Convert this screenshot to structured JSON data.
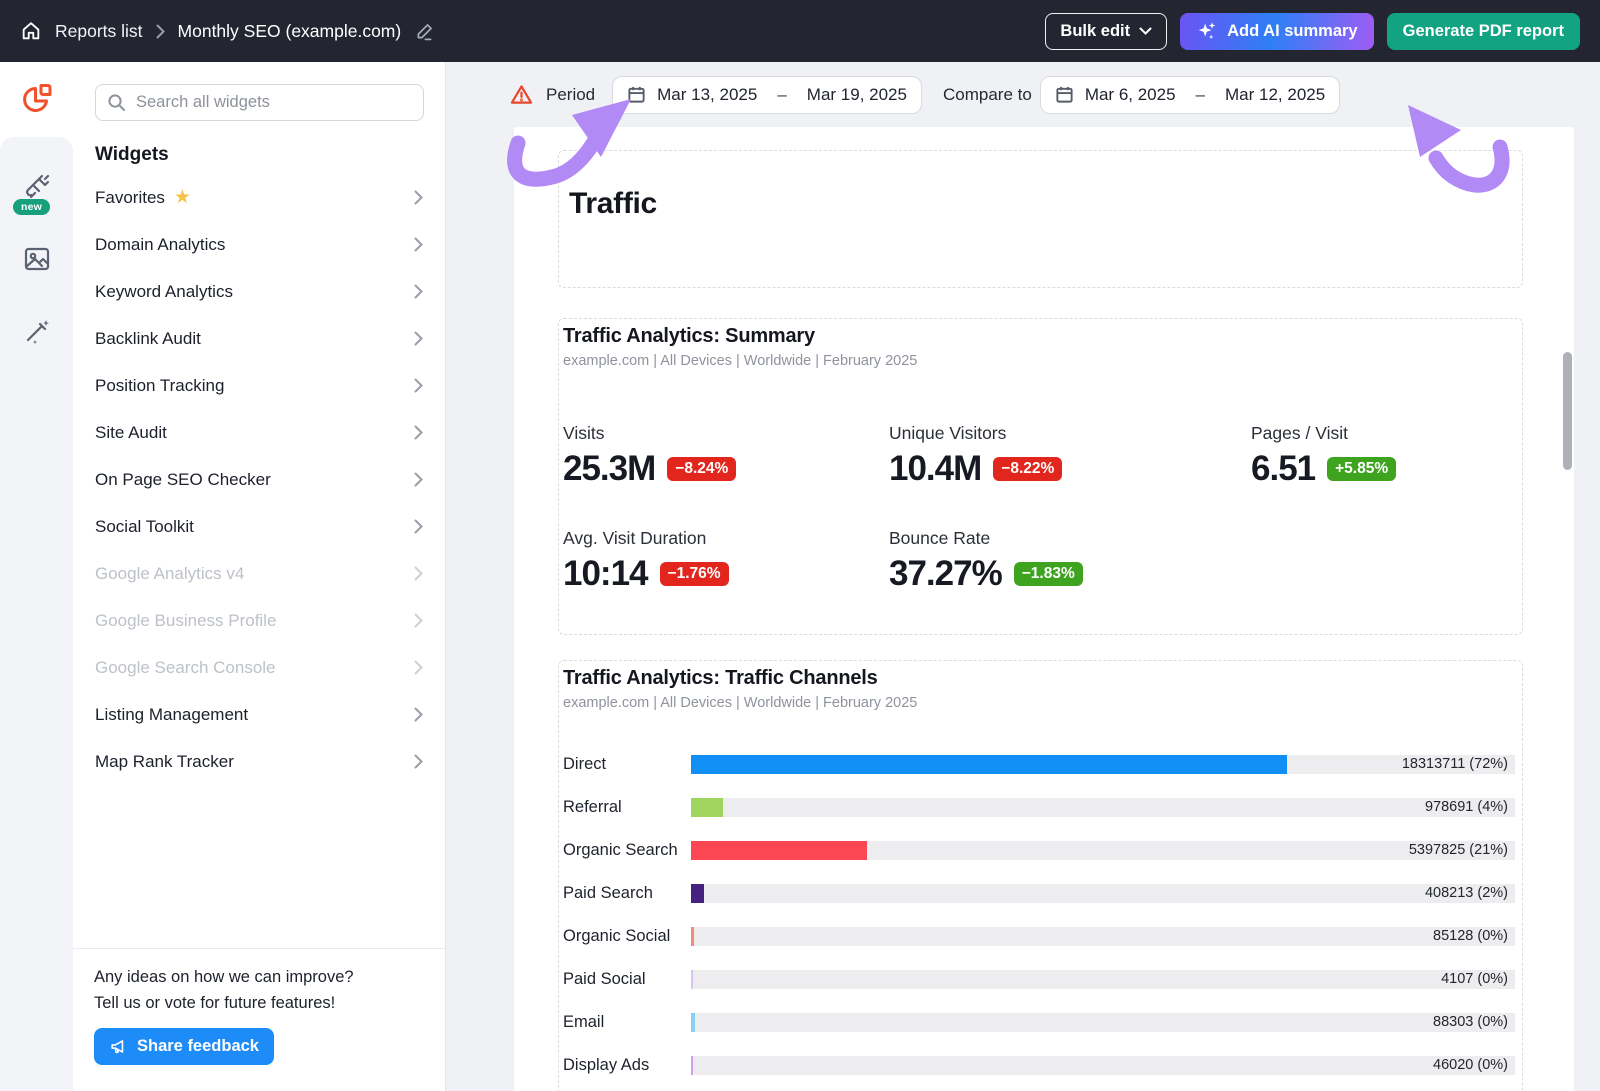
{
  "topbar": {
    "breadcrumb": {
      "root": "Reports list",
      "title": "Monthly SEO (example.com)"
    },
    "bulk_edit_label": "Bulk edit",
    "ai_button_label": "Add AI summary",
    "pdf_button_label": "Generate PDF report"
  },
  "rail": {
    "new_badge": "new"
  },
  "sidebar": {
    "search_placeholder": "Search all widgets",
    "heading": "Widgets",
    "items": [
      {
        "label": "Favorites",
        "state": "enabled"
      },
      {
        "label": "Domain Analytics",
        "state": "enabled"
      },
      {
        "label": "Keyword Analytics",
        "state": "enabled"
      },
      {
        "label": "Backlink Audit",
        "state": "enabled"
      },
      {
        "label": "Position Tracking",
        "state": "enabled"
      },
      {
        "label": "Site Audit",
        "state": "enabled"
      },
      {
        "label": "On Page SEO Checker",
        "state": "enabled"
      },
      {
        "label": "Social Toolkit",
        "state": "enabled"
      },
      {
        "label": "Google Analytics v4",
        "state": "disabled"
      },
      {
        "label": "Google Business Profile",
        "state": "disabled"
      },
      {
        "label": "Google Search Console",
        "state": "disabled"
      },
      {
        "label": "Listing Management",
        "state": "enabled"
      },
      {
        "label": "Map Rank Tracker",
        "state": "enabled"
      }
    ],
    "feedback": {
      "line1": "Any ideas on how we can improve?",
      "line2": "Tell us or vote for future features!",
      "button_label": "Share feedback"
    }
  },
  "period_bar": {
    "period_label": "Period",
    "period_start": "Mar 13, 2025",
    "range_separator": "–",
    "period_end": "Mar 19, 2025",
    "compare_label": "Compare to",
    "compare_start": "Mar 6, 2025",
    "compare_end": "Mar 12, 2025"
  },
  "report": {
    "section_title": "Traffic",
    "summary": {
      "title": "Traffic Analytics: Summary",
      "subtitle": "example.com | All Devices | Worldwide | February 2025",
      "metrics": [
        {
          "label": "Visits",
          "value": "25.3M",
          "change": "−8.24%",
          "badge_color": "red"
        },
        {
          "label": "Unique Visitors",
          "value": "10.4M",
          "change": "−8.22%",
          "badge_color": "red"
        },
        {
          "label": "Pages / Visit",
          "value": "6.51",
          "change": "+5.85%",
          "badge_color": "green"
        },
        {
          "label": "Avg. Visit Duration",
          "value": "10:14",
          "change": "−1.76%",
          "badge_color": "red"
        },
        {
          "label": "Bounce Rate",
          "value": "37.27%",
          "change": "−1.83%",
          "badge_color": "green"
        }
      ]
    },
    "channels": {
      "title": "Traffic Analytics: Traffic Channels",
      "subtitle": "example.com | All Devices | Worldwide | February 2025",
      "rows": [
        {
          "label": "Direct",
          "value_label": "18313711 (72%)",
          "pct": 72.3,
          "color": "#118ff5"
        },
        {
          "label": "Referral",
          "value_label": "978691 (4%)",
          "pct": 3.9,
          "color": "#9fd45e"
        },
        {
          "label": "Organic Search",
          "value_label": "5397825 (21%)",
          "pct": 21.3,
          "color": "#fa4753"
        },
        {
          "label": "Paid Search",
          "value_label": "408213 (2%)",
          "pct": 1.6,
          "color": "#47217f"
        },
        {
          "label": "Organic Social",
          "value_label": "85128 (0%)",
          "pct": 0.4,
          "color": "#f9897d"
        },
        {
          "label": "Paid Social",
          "value_label": "4107 (0%)",
          "pct": 0.2,
          "color": "#d9c1f0"
        },
        {
          "label": "Email",
          "value_label": "88303 (0%)",
          "pct": 0.45,
          "color": "#86d1f5"
        },
        {
          "label": "Display Ads",
          "value_label": "46020 (0%)",
          "pct": 0.3,
          "color": "#d4a1ee"
        }
      ],
      "chart_data": {
        "type": "bar",
        "orientation": "horizontal",
        "categories": [
          "Direct",
          "Referral",
          "Organic Search",
          "Paid Search",
          "Organic Social",
          "Paid Social",
          "Email",
          "Display Ads"
        ],
        "values": [
          18313711,
          978691,
          5397825,
          408213,
          85128,
          4107,
          88303,
          46020
        ],
        "percentages": [
          72,
          4,
          21,
          2,
          0,
          0,
          0,
          0
        ],
        "title": "Traffic Analytics: Traffic Channels"
      }
    }
  },
  "colors": {
    "topbar_bg": "#232631",
    "accent_orange": "#f1512c",
    "pdf_button_green": "#12a382",
    "feedback_blue": "#1d8cf8",
    "badge_red": "#e2261d",
    "badge_green": "#3ea41f",
    "warning_orange": "#e8472b",
    "purple_arrow": "#b28af6",
    "direct_blue": "#118ff5"
  }
}
